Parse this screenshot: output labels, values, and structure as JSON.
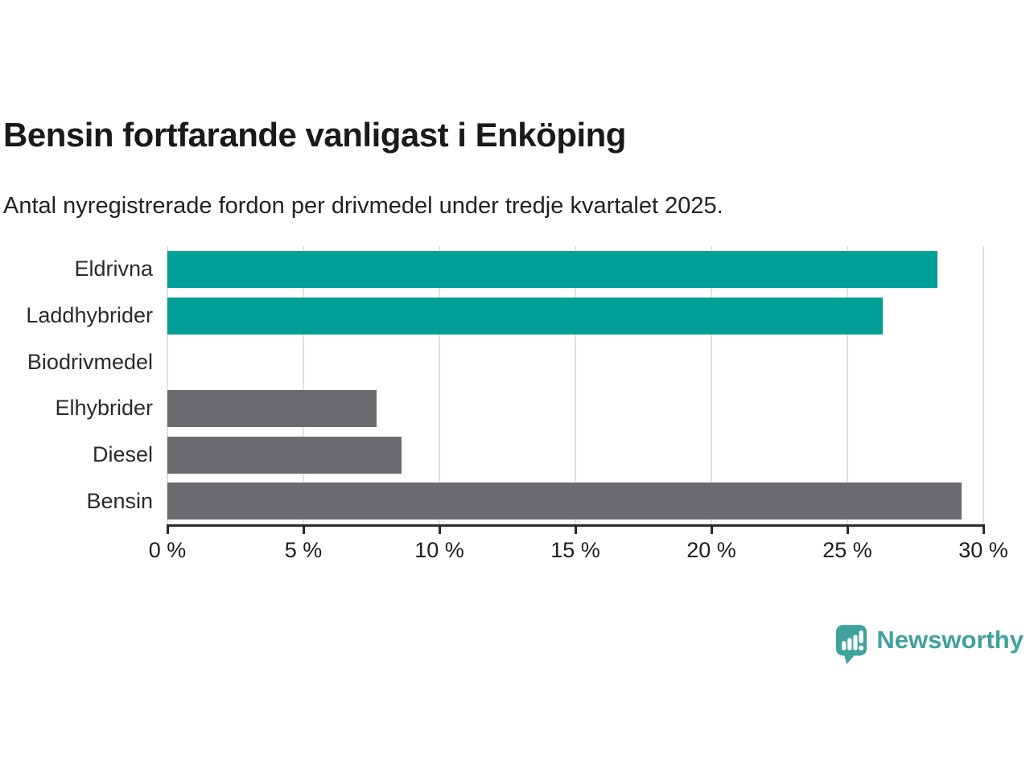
{
  "page": {
    "title": "Bensin fortfarande vanligast i Enköping",
    "subtitle": "Antal nyregistrerade fordon per drivmedel under tredje kvartalet 2025."
  },
  "chart_data": {
    "type": "bar",
    "orientation": "horizontal",
    "title": "Bensin fortfarande vanligast i Enköping",
    "subtitle": "Antal nyregistrerade fordon per drivmedel under tredje kvartalet 2025.",
    "categories": [
      "Eldrivna",
      "Laddhybrider",
      "Biodrivmedel",
      "Elhybrider",
      "Diesel",
      "Bensin"
    ],
    "values": [
      28.3,
      26.3,
      0,
      7.7,
      8.6,
      29.2
    ],
    "unit": "%",
    "bar_colors": [
      "#00A096",
      "#00A096",
      "#6B6A6E",
      "#6B6A6E",
      "#6B6A6E",
      "#6B6A6E"
    ],
    "xlim": [
      0,
      30
    ],
    "xticks": [
      {
        "value": 0,
        "label": "0 %"
      },
      {
        "value": 5,
        "label": "5 %"
      },
      {
        "value": 10,
        "label": "10 %"
      },
      {
        "value": 15,
        "label": "15 %"
      },
      {
        "value": 20,
        "label": "20 %"
      },
      {
        "value": 25,
        "label": "25 %"
      },
      {
        "value": 30,
        "label": "30 %"
      }
    ],
    "grid": "vertical",
    "legend": "none"
  },
  "colors": {
    "highlight_bar": "#00A096",
    "default_bar": "#6B6A6E",
    "gridline": "#E2E2E2",
    "axis": "#2B2B2B",
    "title_text": "#1A1A1A",
    "body_text": "#222222",
    "brand": "#3FA29D"
  },
  "footer": {
    "brand_name": "Newsworthy"
  }
}
